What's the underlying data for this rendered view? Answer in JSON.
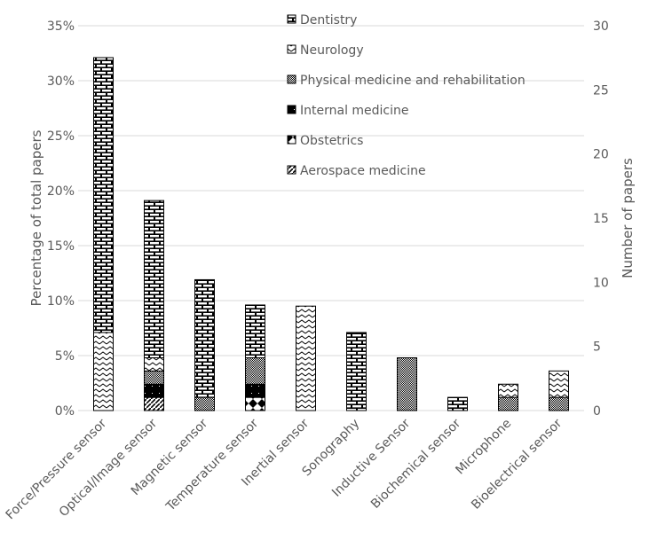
{
  "chart_data": {
    "type": "bar",
    "stacked": true,
    "categories": [
      "Force/Pressure sensor",
      "Optical/Image sensor",
      "Magnetic sensor",
      "Temperature sensor",
      "Inertial sensor",
      "Sonography",
      "Inductive Sensor",
      "Biochemical sensor",
      "Microphone",
      "Bioelectrical sensor"
    ],
    "series": [
      {
        "name": "Aerospace medicine",
        "pattern": "diagonal",
        "values": [
          0,
          1.2,
          0,
          0,
          0,
          0,
          0,
          0,
          0,
          0
        ]
      },
      {
        "name": "Obstetrics",
        "pattern": "diamond",
        "values": [
          0,
          0,
          0,
          1.2,
          0,
          0,
          0,
          0,
          0,
          0
        ]
      },
      {
        "name": "Internal medicine",
        "pattern": "solid",
        "values": [
          0,
          1.2,
          0,
          1.2,
          0,
          0,
          0,
          0,
          0,
          0
        ]
      },
      {
        "name": "Physical medicine and rehabilitation",
        "pattern": "checker",
        "values": [
          0,
          1.2,
          1.2,
          2.4,
          0,
          0,
          4.8,
          0,
          1.2,
          1.2
        ]
      },
      {
        "name": "Neurology",
        "pattern": "zigzag",
        "values": [
          7.1,
          1.2,
          0,
          0,
          9.5,
          0,
          0,
          0,
          1.2,
          2.4
        ]
      },
      {
        "name": "Dentistry",
        "pattern": "brick",
        "values": [
          25.0,
          14.3,
          10.7,
          4.8,
          0,
          7.1,
          0,
          1.2,
          0,
          0
        ]
      }
    ],
    "legend_order": [
      "Dentistry",
      "Neurology",
      "Physical medicine and rehabilitation",
      "Internal medicine",
      "Obstetrics",
      "Aerospace medicine"
    ],
    "ylabel": "Percentage of total papers",
    "y2label": "Number of papers",
    "ylim": [
      0,
      35
    ],
    "yticks": [
      "0%",
      "5%",
      "10%",
      "15%",
      "20%",
      "25%",
      "30%",
      "35%"
    ],
    "y2lim": [
      0,
      30
    ],
    "y2ticks": [
      "0",
      "5",
      "10",
      "15",
      "20",
      "25",
      "30"
    ],
    "grid": true,
    "legend_position": "top-center"
  }
}
